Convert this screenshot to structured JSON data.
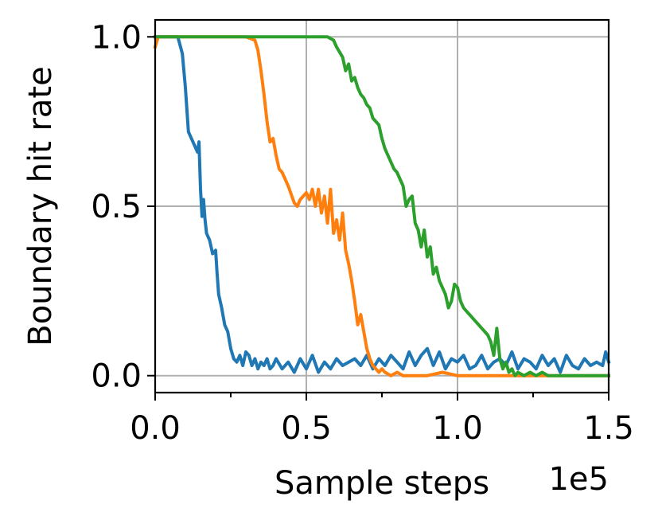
{
  "chart_data": {
    "type": "line",
    "title": "",
    "xlabel": "Sample steps",
    "ylabel": "Boundary hit rate",
    "x_offset_label": "1e5",
    "xlim": [
      0,
      1.5
    ],
    "ylim": [
      -0.05,
      1.05
    ],
    "x_ticks": [
      0.0,
      0.5,
      1.0,
      1.5
    ],
    "x_tick_labels": [
      "0.0",
      "0.5",
      "1.0",
      "1.5"
    ],
    "x_minor_ticks": [
      0.25,
      0.75,
      1.25
    ],
    "y_ticks": [
      0.0,
      0.5,
      1.0
    ],
    "y_tick_labels": [
      "0.0",
      "0.5",
      "1.0"
    ],
    "grid": true,
    "legend": "none",
    "series": [
      {
        "color": "#1f77b4",
        "x": [
          0.0,
          0.02,
          0.05,
          0.075,
          0.09,
          0.1,
          0.11,
          0.12,
          0.13,
          0.14,
          0.145,
          0.15,
          0.155,
          0.16,
          0.165,
          0.17,
          0.175,
          0.18,
          0.19,
          0.2,
          0.205,
          0.21,
          0.215,
          0.22,
          0.23,
          0.24,
          0.25,
          0.26,
          0.27,
          0.28,
          0.29,
          0.3,
          0.31,
          0.32,
          0.33,
          0.34,
          0.35,
          0.36,
          0.37,
          0.38,
          0.39,
          0.4,
          0.42,
          0.44,
          0.46,
          0.48,
          0.5,
          0.52,
          0.54,
          0.56,
          0.58,
          0.6,
          0.62,
          0.64,
          0.66,
          0.68,
          0.7,
          0.72,
          0.74,
          0.76,
          0.78,
          0.8,
          0.82,
          0.84,
          0.86,
          0.88,
          0.9,
          0.92,
          0.94,
          0.96,
          0.98,
          1.0,
          1.02,
          1.04,
          1.06,
          1.08,
          1.1,
          1.12,
          1.14,
          1.16,
          1.18,
          1.2,
          1.22,
          1.24,
          1.26,
          1.28,
          1.3,
          1.32,
          1.34,
          1.36,
          1.38,
          1.4,
          1.42,
          1.44,
          1.46,
          1.48,
          1.49,
          1.5
        ],
        "values": [
          1.0,
          1.0,
          1.0,
          1.0,
          0.95,
          0.85,
          0.72,
          0.7,
          0.68,
          0.66,
          0.69,
          0.55,
          0.47,
          0.52,
          0.46,
          0.42,
          0.41,
          0.4,
          0.36,
          0.37,
          0.3,
          0.24,
          0.22,
          0.2,
          0.15,
          0.13,
          0.08,
          0.05,
          0.04,
          0.06,
          0.03,
          0.07,
          0.06,
          0.03,
          0.05,
          0.02,
          0.04,
          0.03,
          0.05,
          0.02,
          0.03,
          0.05,
          0.02,
          0.04,
          0.01,
          0.05,
          0.02,
          0.06,
          0.01,
          0.04,
          0.02,
          0.05,
          0.03,
          0.04,
          0.05,
          0.03,
          0.06,
          0.02,
          0.05,
          0.03,
          0.06,
          0.04,
          0.02,
          0.07,
          0.03,
          0.06,
          0.08,
          0.03,
          0.07,
          0.02,
          0.05,
          0.04,
          0.06,
          0.02,
          0.03,
          0.06,
          0.02,
          0.04,
          0.05,
          0.03,
          0.07,
          0.02,
          0.05,
          0.04,
          0.02,
          0.06,
          0.03,
          0.05,
          0.01,
          0.06,
          0.03,
          0.02,
          0.05,
          0.03,
          0.04,
          0.03,
          0.07,
          0.04
        ]
      },
      {
        "color": "#ff7f0e",
        "x": [
          0.0,
          0.01,
          0.02,
          0.1,
          0.2,
          0.3,
          0.33,
          0.34,
          0.35,
          0.36,
          0.37,
          0.38,
          0.39,
          0.4,
          0.41,
          0.42,
          0.44,
          0.46,
          0.47,
          0.48,
          0.5,
          0.51,
          0.52,
          0.53,
          0.54,
          0.55,
          0.56,
          0.57,
          0.58,
          0.59,
          0.6,
          0.61,
          0.62,
          0.63,
          0.64,
          0.65,
          0.66,
          0.67,
          0.68,
          0.69,
          0.7,
          0.71,
          0.72,
          0.73,
          0.74,
          0.75,
          0.76,
          0.78,
          0.8,
          0.82,
          0.85,
          0.9,
          0.95,
          1.0,
          1.1,
          1.2,
          1.3,
          1.4,
          1.5
        ],
        "values": [
          0.97,
          1.0,
          1.0,
          1.0,
          1.0,
          1.0,
          0.99,
          0.96,
          0.9,
          0.83,
          0.75,
          0.69,
          0.7,
          0.65,
          0.61,
          0.6,
          0.56,
          0.51,
          0.5,
          0.52,
          0.54,
          0.52,
          0.55,
          0.5,
          0.55,
          0.48,
          0.53,
          0.45,
          0.55,
          0.42,
          0.46,
          0.4,
          0.48,
          0.37,
          0.33,
          0.28,
          0.22,
          0.15,
          0.18,
          0.13,
          0.08,
          0.05,
          0.03,
          0.02,
          0.01,
          0.02,
          0.01,
          0.0,
          0.01,
          0.0,
          0.0,
          0.0,
          0.01,
          0.0,
          0.0,
          0.0,
          0.0,
          0.0,
          0.0
        ]
      },
      {
        "color": "#2ca02c",
        "x": [
          0.0,
          0.1,
          0.2,
          0.3,
          0.4,
          0.5,
          0.55,
          0.57,
          0.59,
          0.6,
          0.62,
          0.63,
          0.64,
          0.65,
          0.66,
          0.67,
          0.68,
          0.69,
          0.7,
          0.71,
          0.72,
          0.73,
          0.74,
          0.75,
          0.76,
          0.77,
          0.78,
          0.79,
          0.8,
          0.81,
          0.82,
          0.83,
          0.84,
          0.85,
          0.86,
          0.87,
          0.88,
          0.89,
          0.9,
          0.91,
          0.92,
          0.93,
          0.94,
          0.95,
          0.96,
          0.97,
          0.98,
          0.99,
          1.0,
          1.01,
          1.02,
          1.03,
          1.04,
          1.05,
          1.06,
          1.07,
          1.08,
          1.09,
          1.1,
          1.11,
          1.12,
          1.13,
          1.14,
          1.15,
          1.16,
          1.17,
          1.18,
          1.19,
          1.2,
          1.22,
          1.24,
          1.26,
          1.28,
          1.3,
          1.35,
          1.4,
          1.45,
          1.5
        ],
        "values": [
          1.0,
          1.0,
          1.0,
          1.0,
          1.0,
          1.0,
          1.0,
          1.0,
          0.99,
          0.97,
          0.94,
          0.9,
          0.92,
          0.87,
          0.88,
          0.85,
          0.83,
          0.82,
          0.8,
          0.79,
          0.76,
          0.75,
          0.74,
          0.7,
          0.67,
          0.65,
          0.63,
          0.61,
          0.6,
          0.58,
          0.56,
          0.5,
          0.52,
          0.53,
          0.45,
          0.43,
          0.38,
          0.43,
          0.35,
          0.38,
          0.3,
          0.32,
          0.28,
          0.26,
          0.24,
          0.2,
          0.22,
          0.27,
          0.26,
          0.22,
          0.2,
          0.19,
          0.18,
          0.17,
          0.16,
          0.15,
          0.14,
          0.13,
          0.12,
          0.1,
          0.06,
          0.14,
          0.05,
          0.02,
          0.04,
          0.01,
          0.02,
          0.0,
          0.01,
          0.0,
          0.01,
          0.0,
          0.01,
          0.0,
          0.0,
          0.0,
          0.0,
          0.0
        ]
      }
    ]
  }
}
